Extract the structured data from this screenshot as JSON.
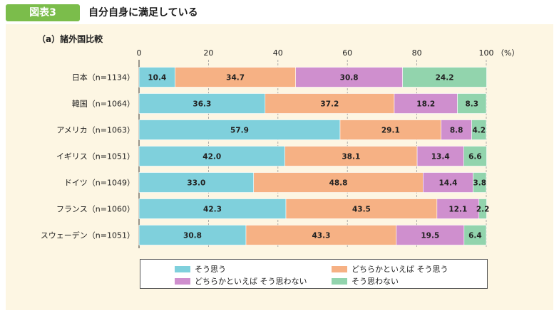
{
  "header": {
    "badge": "図表3",
    "title": "自分自身に満足している"
  },
  "panel": {
    "subtitle": "（a）諸外国比較"
  },
  "colors": {
    "background": "#fdf6e3",
    "series": [
      "#7fd0dc",
      "#f6b184",
      "#cf8fce",
      "#92d4ad"
    ]
  },
  "chart_data": {
    "type": "bar",
    "orientation": "horizontal",
    "stacked": true,
    "title": "（a）諸外国比較",
    "x_ticks": [
      "0",
      "20",
      "40",
      "60",
      "80",
      "100"
    ],
    "x_unit": "（%）",
    "xlim": [
      0,
      100
    ],
    "grid": true,
    "legend_position": "bottom",
    "categories": [
      "日本（n=1134）",
      "韓国（n=1064）",
      "アメリカ（n=1063）",
      "イギリス（n=1051）",
      "ドイツ（n=1049）",
      "フランス（n=1060）",
      "スウェーデン（n=1051）"
    ],
    "series": [
      {
        "name": "そう思う",
        "values": [
          10.4,
          36.3,
          57.9,
          42.0,
          33.0,
          42.3,
          30.8
        ],
        "labels": [
          "10.4",
          "36.3",
          "57.9",
          "42.0",
          "33.0",
          "42.3",
          "30.8"
        ]
      },
      {
        "name": "どちらかといえば そう思う",
        "values": [
          34.7,
          37.2,
          29.1,
          38.1,
          48.8,
          43.5,
          43.3
        ],
        "labels": [
          "34.7",
          "37.2",
          "29.1",
          "38.1",
          "48.8",
          "43.5",
          "43.3"
        ]
      },
      {
        "name": "どちらかといえば そう思わない",
        "values": [
          30.8,
          18.2,
          8.8,
          13.4,
          14.4,
          12.1,
          19.5
        ],
        "labels": [
          "30.8",
          "18.2",
          "8.8",
          "13.4",
          "14.4",
          "12.1",
          "19.5"
        ]
      },
      {
        "name": "そう思わない",
        "values": [
          24.2,
          8.3,
          4.2,
          6.6,
          3.8,
          2.2,
          6.4
        ],
        "labels": [
          "24.2",
          "8.3",
          "4.2",
          "6.6",
          "3.8",
          "2.2",
          "6.4"
        ]
      }
    ]
  }
}
